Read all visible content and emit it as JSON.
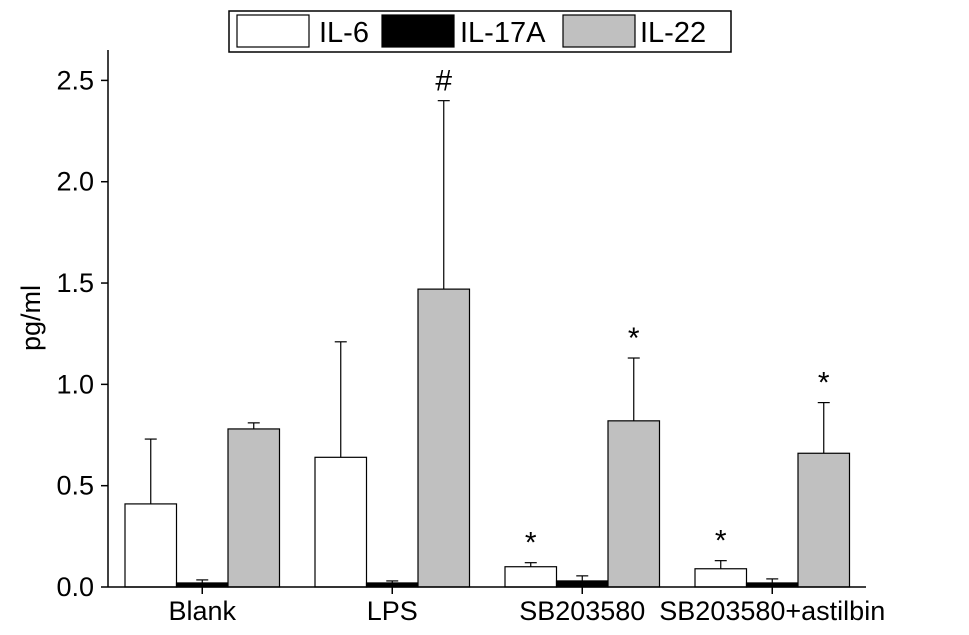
{
  "chart_data": {
    "type": "bar",
    "title": "",
    "xlabel": "",
    "ylabel": "pg/ml",
    "ylim": [
      0,
      2.65
    ],
    "yticks": [
      0.0,
      0.5,
      1.0,
      1.5,
      2.0,
      2.5
    ],
    "ytick_labels": [
      "0.0",
      "0.5",
      "1.0",
      "1.5",
      "2.0",
      "2.5"
    ],
    "categories": [
      "Blank",
      "LPS",
      "SB203580",
      "SB203580+astilbin"
    ],
    "legend_position": "top-center",
    "grid": false,
    "series": [
      {
        "name": "IL-6",
        "color": "#ffffff",
        "values": [
          0.41,
          0.64,
          0.1,
          0.09
        ],
        "errors": [
          0.32,
          0.57,
          0.02,
          0.04
        ],
        "annotations": [
          "",
          "",
          "*",
          "*"
        ]
      },
      {
        "name": "IL-17A",
        "color": "#000000",
        "values": [
          0.02,
          0.02,
          0.03,
          0.02
        ],
        "errors": [
          0.015,
          0.01,
          0.025,
          0.02
        ],
        "annotations": [
          "",
          "",
          "",
          ""
        ]
      },
      {
        "name": "IL-22",
        "color": "#c0c0c0",
        "values": [
          0.78,
          1.47,
          0.82,
          0.66
        ],
        "errors": [
          0.03,
          0.93,
          0.31,
          0.25
        ],
        "annotations": [
          "",
          "#",
          "*",
          "*"
        ]
      }
    ]
  }
}
